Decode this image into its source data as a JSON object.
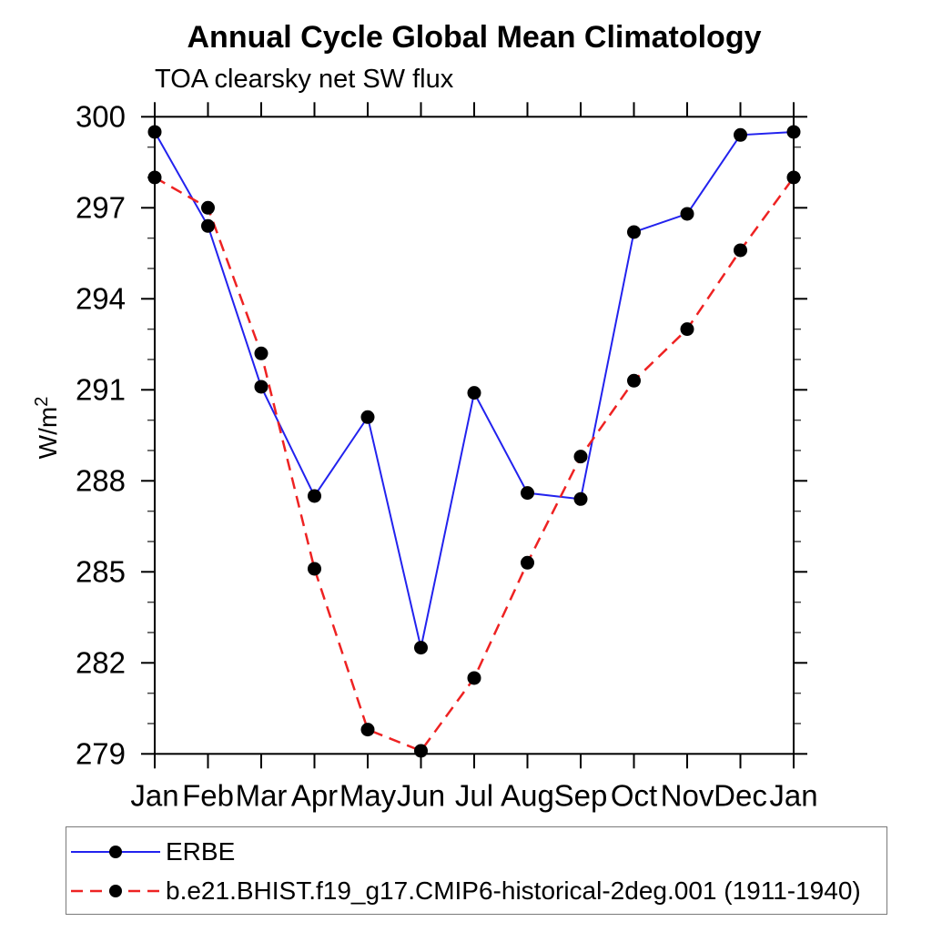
{
  "window": {
    "background_color": "#ffffff",
    "frame_color": "#000000",
    "minor_tick_color": "#444444"
  },
  "chart": {
    "title": "Annual Cycle Global Mean Climatology",
    "subtitle": "TOA clearsky net SW flux",
    "y_axis_label_base": "W/m",
    "y_axis_label_exponent": "2"
  },
  "chart_data": {
    "type": "line",
    "title": "Annual Cycle Global Mean Climatology",
    "subtitle": "TOA clearsky net SW flux",
    "xlabel": "",
    "ylabel": "W/m2",
    "categories": [
      "Jan",
      "Feb",
      "Mar",
      "Apr",
      "May",
      "Jun",
      "Jul",
      "Aug",
      "Sep",
      "Oct",
      "Nov",
      "Dec",
      "Jan"
    ],
    "series": [
      {
        "name": "ERBE",
        "line_style": "solid",
        "line_color": "#2222ee",
        "line_width": 2,
        "marker": "filled-circle",
        "marker_color": "#000000",
        "values": [
          299.5,
          296.4,
          291.1,
          287.5,
          290.1,
          282.5,
          290.9,
          287.6,
          287.4,
          296.2,
          296.8,
          299.4,
          299.5
        ]
      },
      {
        "name": "b.e21.BHIST.f19_g17.CMIP6-historical-2deg.001 (1911-1940)",
        "line_style": "dashed",
        "line_color": "#ee2222",
        "line_width": 2.5,
        "marker": "filled-circle",
        "marker_color": "#000000",
        "values": [
          298.0,
          297.0,
          292.2,
          285.1,
          279.8,
          279.1,
          281.5,
          285.3,
          288.8,
          291.3,
          293.0,
          295.6,
          298.0
        ]
      }
    ],
    "ylim": [
      279,
      300
    ],
    "ytick_major_interval": 3,
    "ytick_minor_interval": 1,
    "ytick_labels": [
      "279",
      "282",
      "285",
      "288",
      "291",
      "294",
      "297",
      "300"
    ],
    "grid": false,
    "legend_position": "bottom-left-box"
  }
}
